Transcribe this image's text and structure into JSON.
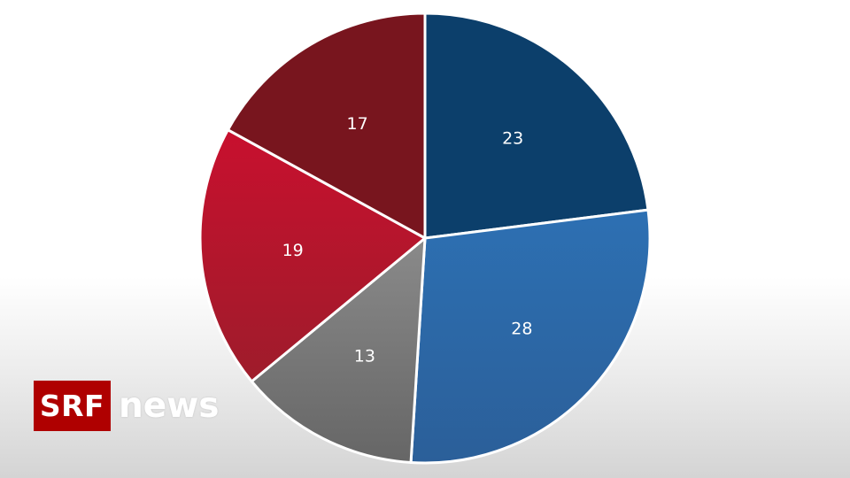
{
  "chart_data": {
    "type": "pie",
    "title": "",
    "slices": [
      {
        "value": 23,
        "label": "23",
        "color": "#0c3f6b",
        "color_end": "#0c3f6b"
      },
      {
        "value": 28,
        "label": "28",
        "color": "#2d70b3",
        "color_end": "#2b5f99"
      },
      {
        "value": 13,
        "label": "13",
        "color": "#8a8a8a",
        "color_end": "#666666"
      },
      {
        "value": 19,
        "label": "19",
        "color": "#c8102e",
        "color_end": "#9e1c2b"
      },
      {
        "value": 17,
        "label": "17",
        "color": "#78151e",
        "color_end": "#78151e"
      }
    ]
  },
  "brand": {
    "logo": "SRF",
    "name": "news",
    "logo_color": "#af0000"
  }
}
